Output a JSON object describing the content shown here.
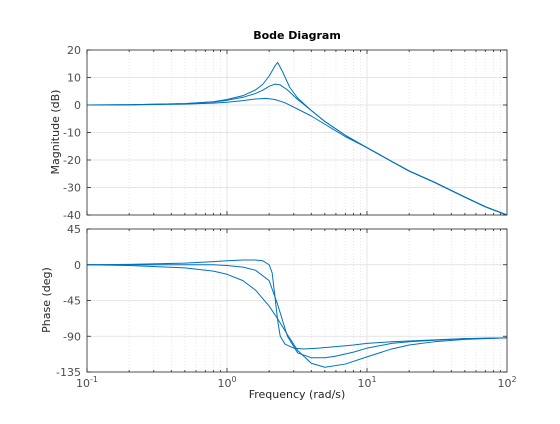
{
  "chart_data": {
    "type": "line",
    "title": "Bode Diagram",
    "xlabel": "Frequency  (rad/s)",
    "xscale": "log",
    "xlim": [
      0.1,
      100
    ],
    "x_tick_labels": [
      {
        "value": 0.1,
        "base": "10",
        "exp": "-1"
      },
      {
        "value": 1,
        "base": "10",
        "exp": "0"
      },
      {
        "value": 10,
        "base": "10",
        "exp": "1"
      },
      {
        "value": 100,
        "base": "10",
        "exp": "2"
      }
    ],
    "grid": true,
    "line_color": "#0072BD",
    "subplots": [
      {
        "name": "magnitude",
        "ylabel": "Magnitude (dB)",
        "ylim": [
          -40,
          20
        ],
        "yticks": [
          20,
          10,
          0,
          -10,
          -20,
          -30,
          -40
        ],
        "series": [
          {
            "x": [
              0.1,
              0.2,
              0.5,
              0.8,
              1,
              1.3,
              1.6,
              1.8,
              2.0,
              2.2,
              2.3,
              2.5,
              2.8,
              3.2,
              4,
              5,
              7,
              10,
              15,
              20,
              30,
              50,
              70,
              100
            ],
            "y": [
              0,
              0.1,
              0.5,
              1.2,
              2.0,
              3.4,
              5.5,
              7.5,
              10.5,
              14.2,
              15.5,
              12.0,
              6.5,
              2.5,
              -2.0,
              -6.0,
              -11.0,
              -15.5,
              -20.5,
              -24.0,
              -28.0,
              -33.5,
              -37.0,
              -40.0
            ]
          },
          {
            "x": [
              0.1,
              0.2,
              0.5,
              0.8,
              1,
              1.3,
              1.6,
              1.8,
              2.0,
              2.2,
              2.4,
              2.7,
              3.2,
              4,
              5,
              7,
              10,
              15,
              20,
              30,
              50,
              70,
              100
            ],
            "y": [
              0,
              0.1,
              0.5,
              1.1,
              1.7,
              2.8,
              4.2,
              5.4,
              6.8,
              7.6,
              7.3,
              5.5,
              2.0,
              -2.0,
              -6.0,
              -11.0,
              -15.5,
              -20.5,
              -24.0,
              -28.0,
              -33.5,
              -37.0,
              -40.0
            ]
          },
          {
            "x": [
              0.1,
              0.2,
              0.5,
              0.8,
              1,
              1.3,
              1.6,
              1.9,
              2.2,
              2.6,
              3.2,
              4,
              5,
              7,
              10,
              15,
              20,
              30,
              50,
              70,
              100
            ],
            "y": [
              0,
              0.05,
              0.3,
              0.7,
              1.0,
              1.6,
              2.2,
              2.4,
              2.0,
              0.8,
              -1.5,
              -4.0,
              -7.0,
              -11.5,
              -15.5,
              -20.5,
              -24.0,
              -28.0,
              -33.5,
              -37.0,
              -40.0
            ]
          }
        ]
      },
      {
        "name": "phase",
        "ylabel": "Phase (deg)",
        "ylim": [
          -135,
          45
        ],
        "yticks": [
          45,
          0,
          -45,
          -90,
          -135
        ],
        "series": [
          {
            "x": [
              0.1,
              0.2,
              0.5,
              0.8,
              1.0,
              1.3,
              1.6,
              1.8,
              2.0,
              2.1,
              2.2,
              2.3,
              2.4,
              2.6,
              3.0,
              3.5,
              4.5,
              6,
              8,
              10,
              15,
              20,
              30,
              50,
              70,
              100
            ],
            "y": [
              0,
              0.5,
              2,
              4,
              5,
              6,
              6,
              5,
              0,
              -10,
              -40,
              -70,
              -90,
              -100,
              -105,
              -106,
              -105,
              -103,
              -101,
              -99,
              -97,
              -96,
              -94.5,
              -93,
              -92.5,
              -92
            ]
          },
          {
            "x": [
              0.1,
              0.2,
              0.5,
              0.8,
              1.0,
              1.3,
              1.6,
              2.0,
              2.3,
              2.7,
              3.2,
              4,
              5,
              6,
              8,
              10,
              15,
              20,
              30,
              50,
              100
            ],
            "y": [
              0,
              0,
              0,
              0,
              -1,
              -3,
              -7,
              -20,
              -50,
              -90,
              -111,
              -117,
              -117,
              -115,
              -110,
              -105,
              -99,
              -97,
              -95,
              -93,
              -92
            ]
          },
          {
            "x": [
              0.1,
              0.2,
              0.5,
              0.8,
              1.0,
              1.3,
              1.6,
              2.0,
              2.3,
              2.7,
              3.2,
              4,
              5,
              7,
              10,
              15,
              20,
              30,
              50,
              100
            ],
            "y": [
              0,
              -1,
              -4,
              -8,
              -12,
              -20,
              -32,
              -52,
              -68,
              -88,
              -108,
              -124,
              -129,
              -125,
              -116,
              -106,
              -101,
              -97,
              -94,
              -92
            ]
          }
        ]
      }
    ]
  }
}
